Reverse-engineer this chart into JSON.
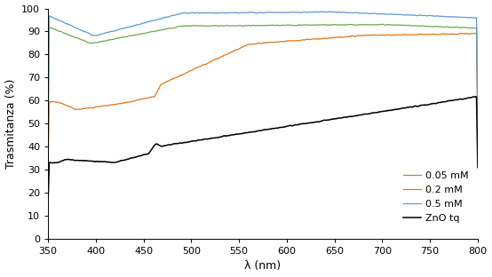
{
  "title": "",
  "xlabel": "λ (nm)",
  "ylabel": "Trasmitanza (%)",
  "xlim": [
    350,
    800
  ],
  "ylim": [
    0,
    100
  ],
  "yticks": [
    0,
    10,
    20,
    30,
    40,
    50,
    60,
    70,
    80,
    90,
    100
  ],
  "xticks": [
    350,
    400,
    450,
    500,
    550,
    600,
    650,
    700,
    750,
    800
  ],
  "legend": [
    "0.05 mM",
    "0.2 mM",
    "0.5 mM",
    "ZnO tq"
  ],
  "colors": {
    "green": "#6aaa4f",
    "orange": "#e07820",
    "blue": "#5b9bd5",
    "black": "#000000"
  },
  "background": "#ffffff"
}
